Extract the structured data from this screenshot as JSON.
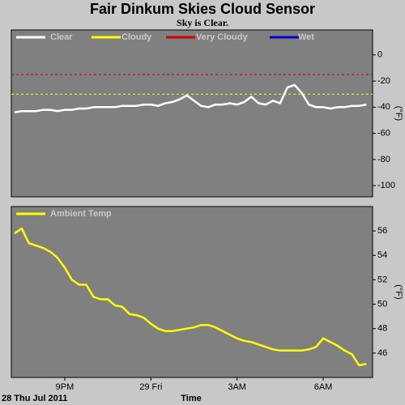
{
  "title": "Fair Dinkum Skies Cloud Sensor",
  "subtitle": "Sky is Clear.",
  "chart_data": [
    {
      "type": "line",
      "y_label": "(°F)",
      "x": [
        19.25,
        19.5,
        19.75,
        20,
        20.25,
        20.5,
        20.75,
        21,
        21.25,
        21.5,
        21.75,
        22,
        22.25,
        22.5,
        22.75,
        23,
        23.25,
        23.5,
        23.75,
        24,
        24.25,
        24.5,
        24.75,
        25,
        25.25,
        25.5,
        25.75,
        26,
        26.25,
        26.5,
        26.75,
        27,
        27.25,
        27.5,
        27.75,
        28,
        28.25,
        28.5,
        28.75,
        29,
        29.25,
        29.5,
        29.75,
        30,
        30.25,
        30.5,
        30.75,
        31,
        31.25,
        31.5
      ],
      "series": [
        {
          "name": "Clear",
          "color": "#ffffff",
          "values": [
            -44,
            -43,
            -43,
            -43,
            -42,
            -42,
            -43,
            -42,
            -42,
            -41,
            -41,
            -40,
            -40,
            -40,
            -40,
            -39,
            -39,
            -39,
            -38,
            -38,
            -39,
            -37,
            -36,
            -34,
            -31,
            -35,
            -39,
            -40,
            -38,
            -38,
            -37,
            -38,
            -36,
            -32,
            -37,
            -38,
            -35,
            -37,
            -25,
            -23,
            -29,
            -38,
            -40,
            -40,
            -41,
            -40,
            -40,
            -39,
            -39,
            -38
          ]
        },
        {
          "name": "Cloudy",
          "color": "#ffff00",
          "values": [
            null,
            null,
            null,
            null,
            null,
            null,
            null,
            null,
            null,
            null,
            null,
            null,
            null,
            null,
            null,
            null,
            null,
            null,
            null,
            null,
            null,
            null,
            null,
            null,
            null,
            null,
            null,
            null,
            null,
            null,
            null,
            null,
            null,
            null,
            null,
            null,
            null,
            null,
            null,
            null,
            null,
            null,
            null,
            null,
            null,
            null,
            null,
            null,
            null,
            null
          ]
        },
        {
          "name": "Very Cloudy",
          "color": "#cc0000",
          "values": [
            null,
            null,
            null,
            null,
            null,
            null,
            null,
            null,
            null,
            null,
            null,
            null,
            null,
            null,
            null,
            null,
            null,
            null,
            null,
            null,
            null,
            null,
            null,
            null,
            null,
            null,
            null,
            null,
            null,
            null,
            null,
            null,
            null,
            null,
            null,
            null,
            null,
            null,
            null,
            null,
            null,
            null,
            null,
            null,
            null,
            null,
            null,
            null,
            null,
            null
          ]
        },
        {
          "name": "Wet",
          "color": "#0000cc",
          "values": [
            null,
            null,
            null,
            null,
            null,
            null,
            null,
            null,
            null,
            null,
            null,
            null,
            null,
            null,
            null,
            null,
            null,
            null,
            null,
            null,
            null,
            null,
            null,
            null,
            null,
            null,
            null,
            null,
            null,
            null,
            null,
            null,
            null,
            null,
            null,
            null,
            null,
            null,
            null,
            null,
            null,
            null,
            null,
            null,
            null,
            null,
            null,
            null,
            null,
            null
          ]
        }
      ],
      "thresholds": [
        {
          "value": -15,
          "color": "#cc0000"
        },
        {
          "value": -30,
          "color": "#ffff00"
        }
      ],
      "xlim": [
        19.14,
        31.72
      ],
      "ylim": [
        -108.6,
        19.1
      ],
      "yticks": [
        0,
        -20,
        -40,
        -60,
        -80,
        -100
      ]
    },
    {
      "type": "line",
      "y_label": "(°F)",
      "x_label": "Time",
      "date_label": "28 Thu Jul 2011",
      "x": [
        19.25,
        19.5,
        19.75,
        20,
        20.25,
        20.5,
        20.75,
        21,
        21.25,
        21.5,
        21.75,
        22,
        22.25,
        22.5,
        22.75,
        23,
        23.25,
        23.5,
        23.75,
        24,
        24.25,
        24.5,
        24.75,
        25,
        25.25,
        25.5,
        25.75,
        26,
        26.25,
        26.5,
        26.75,
        27,
        27.25,
        27.5,
        27.75,
        28,
        28.25,
        28.5,
        28.75,
        29,
        29.25,
        29.5,
        29.75,
        30,
        30.25,
        30.5,
        30.75,
        31,
        31.25,
        31.5
      ],
      "series": [
        {
          "name": "Ambient Temp",
          "color": "#ffff00",
          "values": [
            55.8,
            56.2,
            55.0,
            54.8,
            54.6,
            54.3,
            53.8,
            53.0,
            52.0,
            51.6,
            51.6,
            50.6,
            50.4,
            50.4,
            49.9,
            49.8,
            49.2,
            49.1,
            48.9,
            48.4,
            48.0,
            47.8,
            47.8,
            47.9,
            48.0,
            48.1,
            48.3,
            48.3,
            48.1,
            47.8,
            47.5,
            47.2,
            47.0,
            46.9,
            46.7,
            46.5,
            46.3,
            46.2,
            46.2,
            46.2,
            46.2,
            46.3,
            46.5,
            47.2,
            46.9,
            46.6,
            46.2,
            45.9,
            45.0,
            45.1
          ]
        }
      ],
      "xlim": [
        19.14,
        31.72
      ],
      "ylim": [
        44,
        58
      ],
      "xticks": [
        {
          "value": 21,
          "label": "9PM"
        },
        {
          "value": 24,
          "label": "29 Fri"
        },
        {
          "value": 27,
          "label": "3AM"
        },
        {
          "value": 30,
          "label": "6AM"
        }
      ],
      "yticks": [
        46,
        48,
        50,
        52,
        54,
        56
      ]
    }
  ]
}
